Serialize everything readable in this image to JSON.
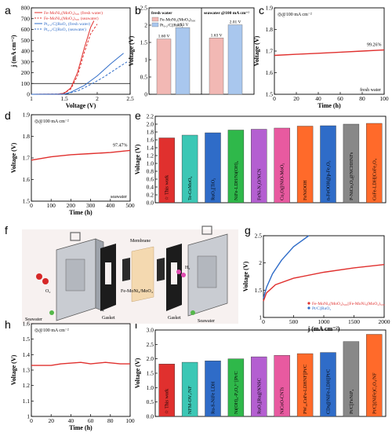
{
  "colors": {
    "red": "#e0302e",
    "blue": "#2f6cc8",
    "orange": "#ff6a2a",
    "green": "#2fb84a",
    "teal": "#3cc7b5",
    "gold": "#e8b020",
    "purple": "#b45fd1",
    "pink": "#e85aa0"
  },
  "chart_data": [
    {
      "panel": "a",
      "type": "line",
      "xlabel": "Voltage (V)",
      "ylabel": "j (mA cm⁻²)",
      "xlim": [
        1.0,
        2.5
      ],
      "ylim": [
        0,
        800
      ],
      "xticks": [
        1.0,
        1.5,
        2.0,
        2.5
      ],
      "yticks": [
        0,
        100,
        200,
        300,
        400,
        500,
        600,
        700,
        800
      ],
      "reference_line": 100,
      "series": [
        {
          "name": "Fe-MoNi₃(MoO₄)₅₀₀ (fresh water)",
          "color": "red",
          "dash": false,
          "points": [
            [
              1.0,
              0
            ],
            [
              1.4,
              2
            ],
            [
              1.5,
              10
            ],
            [
              1.6,
              60
            ],
            [
              1.7,
              200
            ],
            [
              1.8,
              420
            ],
            [
              1.9,
              620
            ],
            [
              1.95,
              680
            ]
          ]
        },
        {
          "name": "Fe-MoNi₃(MoO₄)₅₀₀ (seawater)",
          "color": "red",
          "dash": true,
          "points": [
            [
              1.0,
              0
            ],
            [
              1.4,
              2
            ],
            [
              1.5,
              8
            ],
            [
              1.6,
              50
            ],
            [
              1.7,
              170
            ],
            [
              1.8,
              380
            ],
            [
              1.9,
              560
            ],
            [
              2.0,
              650
            ]
          ]
        },
        {
          "name": "Pt₀.₂/C||RuO₂ (fresh water)",
          "color": "blue",
          "dash": false,
          "points": [
            [
              1.0,
              0
            ],
            [
              1.5,
              2
            ],
            [
              1.6,
              20
            ],
            [
              1.8,
              80
            ],
            [
              2.0,
              170
            ],
            [
              2.2,
              280
            ],
            [
              2.4,
              380
            ]
          ]
        },
        {
          "name": "Pt₀.₂/C||RuO₂ (seawater)",
          "color": "blue",
          "dash": true,
          "points": [
            [
              1.0,
              0
            ],
            [
              1.5,
              1
            ],
            [
              1.7,
              30
            ],
            [
              1.9,
              90
            ],
            [
              2.1,
              160
            ],
            [
              2.3,
              240
            ],
            [
              2.45,
              300
            ]
          ]
        }
      ]
    },
    {
      "panel": "b",
      "type": "bar",
      "ylabel": "Voltage (V)",
      "ylim": [
        0,
        2.5
      ],
      "yticks": [
        0.0,
        0.5,
        1.0,
        1.5,
        2.0,
        2.5
      ],
      "groups": [
        {
          "label": "fresh water",
          "values": [
            1.6,
            1.93
          ]
        },
        {
          "label": "seawater @100 mA cm⁻²",
          "values": [
            1.63,
            2.01
          ]
        }
      ],
      "value_labels": [
        "1.60 V",
        "1.93 V",
        "1.63 V",
        "2.01 V"
      ],
      "series": [
        {
          "name": "Fe-MoNi₃(MoO₄)₅₀₀",
          "color": "#f2b8b4"
        },
        {
          "name": "Pt₀.₂/C||RuO₂",
          "color": "#a9c7ee"
        }
      ]
    },
    {
      "panel": "c",
      "type": "line",
      "xlabel": "Time (h)",
      "ylabel": "Voltage (V)",
      "xlim": [
        0,
        100
      ],
      "ylim": [
        1.5,
        1.9
      ],
      "xticks": [
        0,
        20,
        40,
        60,
        80,
        100
      ],
      "yticks": [
        1.5,
        1.6,
        1.7,
        1.8,
        1.9
      ],
      "annotation": "@100 mA cm⁻²",
      "retention": "99.26%",
      "condition": "fresh water",
      "points": [
        [
          0,
          1.68
        ],
        [
          20,
          1.685
        ],
        [
          40,
          1.69
        ],
        [
          60,
          1.695
        ],
        [
          80,
          1.7
        ],
        [
          100,
          1.705
        ]
      ]
    },
    {
      "panel": "d",
      "type": "line",
      "xlabel": "Time (h)",
      "ylabel": "Voltage (V)",
      "xlim": [
        0,
        500
      ],
      "ylim": [
        1.5,
        1.9
      ],
      "xticks": [
        0,
        100,
        200,
        300,
        400,
        500
      ],
      "yticks": [
        1.5,
        1.6,
        1.7,
        1.8,
        1.9
      ],
      "annotation": "@100 mA cm⁻²",
      "retention": "97.47%",
      "condition": "seawater",
      "points": [
        [
          0,
          1.69
        ],
        [
          100,
          1.705
        ],
        [
          200,
          1.715
        ],
        [
          300,
          1.72
        ],
        [
          400,
          1.725
        ],
        [
          500,
          1.735
        ]
      ]
    },
    {
      "panel": "e",
      "type": "bar",
      "ylabel": "Voltage (V)",
      "ylim": [
        0,
        2.2
      ],
      "yticks": [
        0.0,
        0.2,
        0.4,
        0.6,
        0.8,
        1.0,
        1.2,
        1.4,
        1.6,
        1.8,
        2.0,
        2.2
      ],
      "categories": [
        "This work",
        "Te-CoMoO₄",
        "RuO₂||TiO₂",
        "NiFe-LDH/Ni(OH)₂",
        "FeNi-N₂O/NCN",
        "Cu₂O@NiO-MoO₂",
        "FeNiOOH",
        "n-FeOOH@p-Fe₂O₃",
        "P-NiCo₂O₄@NCHHNFs",
        "CoFe-LDH||CoFe₂O₄"
      ],
      "values": [
        1.65,
        1.72,
        1.78,
        1.85,
        1.87,
        1.9,
        1.95,
        1.96,
        2.0,
        2.02
      ]
    },
    {
      "panel": "g",
      "type": "line",
      "xlabel": "j (mA cm⁻²)",
      "ylabel": "Voltage (V)",
      "xlim": [
        0,
        2000
      ],
      "ylim": [
        1.0,
        2.5
      ],
      "xticks": [
        0,
        500,
        1000,
        1500,
        2000
      ],
      "yticks": [
        1.0,
        1.5,
        2.0,
        2.5
      ],
      "series": [
        {
          "name": "Fe-MoNi₃(MoO₄)₅₀₀||Fe-MoNi₃(MoO₄)₅₀₀",
          "color": "red",
          "points": [
            [
              0,
              1.3
            ],
            [
              50,
              1.45
            ],
            [
              200,
              1.6
            ],
            [
              500,
              1.72
            ],
            [
              1000,
              1.83
            ],
            [
              1500,
              1.91
            ],
            [
              2000,
              1.97
            ]
          ]
        },
        {
          "name": "Pt/C||RuO₂",
          "color": "blue",
          "points": [
            [
              0,
              1.35
            ],
            [
              50,
              1.55
            ],
            [
              150,
              1.8
            ],
            [
              300,
              2.05
            ],
            [
              500,
              2.3
            ],
            [
              750,
              2.5
            ]
          ]
        }
      ]
    },
    {
      "panel": "h",
      "type": "line",
      "xlabel": "Time (h)",
      "ylabel": "Voltage (V)",
      "xlim": [
        0,
        100
      ],
      "ylim": [
        1.0,
        1.6
      ],
      "xticks": [
        0,
        20,
        40,
        60,
        80,
        100
      ],
      "yticks": [
        1.0,
        1.1,
        1.2,
        1.3,
        1.4,
        1.5,
        1.6
      ],
      "annotation": "@100 mA cm⁻²",
      "points": [
        [
          0,
          1.33
        ],
        [
          20,
          1.33
        ],
        [
          30,
          1.34
        ],
        [
          50,
          1.35
        ],
        [
          60,
          1.34
        ],
        [
          75,
          1.35
        ],
        [
          90,
          1.34
        ],
        [
          100,
          1.34
        ]
      ]
    },
    {
      "panel": "i",
      "type": "bar",
      "ylabel": "Voltage (V)",
      "ylim": [
        0,
        3.0
      ],
      "yticks": [
        0.0,
        0.5,
        1.0,
        1.5,
        2.0,
        2.5,
        3.0
      ],
      "categories": [
        "This work",
        "NFM-OVₓ/NF",
        "Ru-S-NiFe LDH",
        "Ni(OH)₂-P₅O₄⁵⁻||Pt/C",
        "RuO₂||Ru@NNSC",
        "NiCoO-CNTs",
        "PW₁₀CoFe-LDHNF||Pt/C",
        "CDs@NiFe-LDH||Pt/C",
        "Pt/C||FeNiP₄",
        "Pt/C||(NiFe)C₂O₄/NF"
      ],
      "values": [
        1.82,
        1.88,
        1.93,
        2.0,
        2.07,
        2.12,
        2.18,
        2.22,
        2.6,
        2.85
      ]
    }
  ],
  "panel_letters": [
    "a",
    "b",
    "c",
    "d",
    "e",
    "f",
    "g",
    "h",
    "i"
  ],
  "panel_f": {
    "labels": [
      "O₂",
      "H₂",
      "Membrane",
      "Gasket",
      "Gasket",
      "Fe-MoNi₃/MoO₄",
      "Seawater",
      "Seawater"
    ]
  }
}
